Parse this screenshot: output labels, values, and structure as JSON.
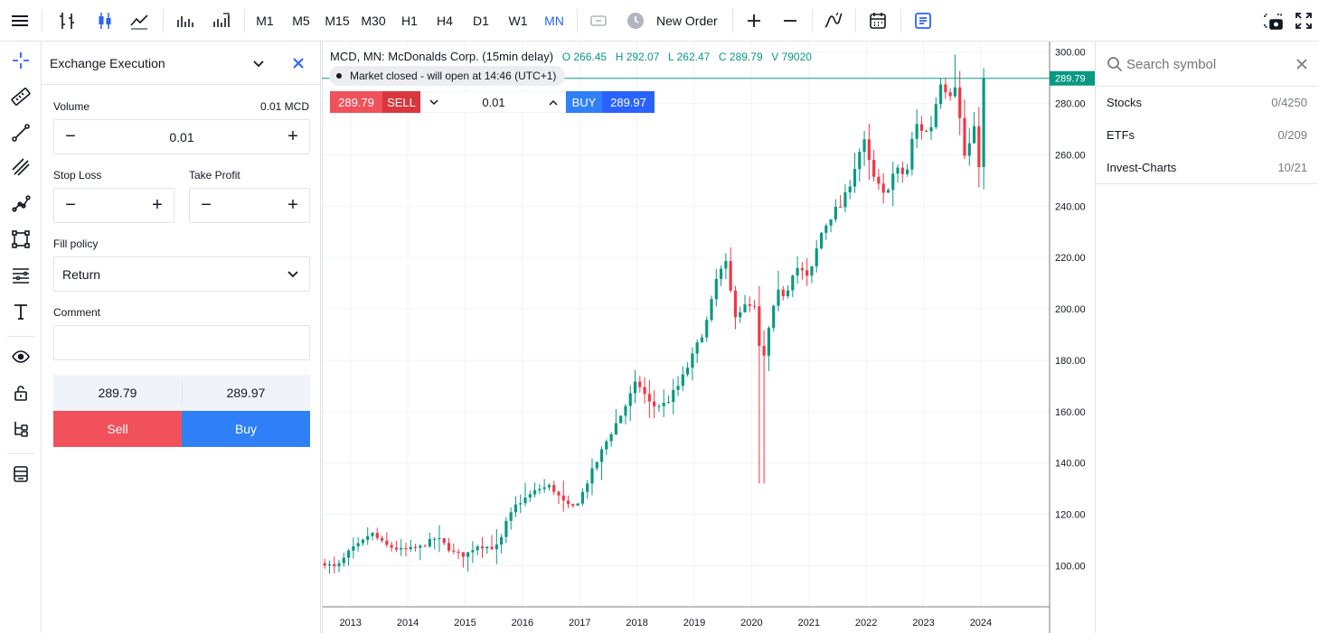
{
  "toolbar": {
    "timeframes": [
      "M1",
      "M5",
      "M15",
      "M30",
      "H1",
      "H4",
      "D1",
      "W1",
      "MN"
    ],
    "active_timeframe": "MN",
    "new_order_label": "New Order"
  },
  "order_panel": {
    "title": "Exchange Execution",
    "volume_label": "Volume",
    "volume_unit_value": "0.01 MCD",
    "volume_value": "0.01",
    "stop_loss_label": "Stop Loss",
    "stop_loss_value": "",
    "take_profit_label": "Take Profit",
    "take_profit_value": "",
    "fill_policy_label": "Fill policy",
    "fill_policy_value": "Return",
    "comment_label": "Comment",
    "comment_value": "",
    "sell_price": "289.79",
    "buy_price": "289.97",
    "sell_label": "Sell",
    "buy_label": "Buy"
  },
  "chart": {
    "symbol_title": "MCD, MN: McDonalds Corp. (15min delay)",
    "ohlc": {
      "o": "O 266.45",
      "h": "H 292.07",
      "l": "L 262.47",
      "c": "C 289.79",
      "v": "V 79020"
    },
    "market_status": "Market closed - will open at 14:46 (UTC+1)",
    "quick_trade": {
      "sell_price": "289.79",
      "sell_label": "SELL",
      "volume": "0.01",
      "buy_label": "BUY",
      "buy_price": "289.97"
    },
    "last_price_label": "289.79",
    "colors": {
      "up": "#089981",
      "down": "#f23645",
      "buy": "#2962ff",
      "sell": "#f23645",
      "price_line": "#089981"
    }
  },
  "chart_data": {
    "type": "candlestick",
    "title": "MCD, MN: McDonalds Corp. (15min delay)",
    "y_ticks": [
      "100.00",
      "120.00",
      "140.00",
      "160.00",
      "180.00",
      "200.00",
      "220.00",
      "240.00",
      "260.00",
      "280.00",
      "300.00"
    ],
    "ylim": [
      84,
      302
    ],
    "x_ticks": [
      {
        "label": "2013",
        "t": 2013.0
      },
      {
        "label": "2014",
        "t": 2014.0
      },
      {
        "label": "2015",
        "t": 2015.0
      },
      {
        "label": "2016",
        "t": 2016.0
      },
      {
        "label": "2017",
        "t": 2017.0
      },
      {
        "label": "2018",
        "t": 2018.0
      },
      {
        "label": "2019",
        "t": 2019.0
      },
      {
        "label": "2020",
        "t": 2020.0
      },
      {
        "label": "2021",
        "t": 2021.0
      },
      {
        "label": "2022",
        "t": 2022.0
      },
      {
        "label": "2023",
        "t": 2023.0
      },
      {
        "label": "2024",
        "t": 2024.0
      }
    ],
    "xlim": [
      2012.5,
      2025.2
    ],
    "last_price": 289.79,
    "anchors": [
      [
        2012.55,
        101
      ],
      [
        2012.75,
        99
      ],
      [
        2013.0,
        106
      ],
      [
        2013.2,
        109
      ],
      [
        2013.35,
        113
      ],
      [
        2013.6,
        108
      ],
      [
        2013.9,
        106
      ],
      [
        2014.2,
        107
      ],
      [
        2014.5,
        111
      ],
      [
        2014.8,
        105
      ],
      [
        2015.0,
        104
      ],
      [
        2015.2,
        108
      ],
      [
        2015.5,
        107
      ],
      [
        2015.6,
        108
      ],
      [
        2015.7,
        116
      ],
      [
        2015.9,
        124
      ],
      [
        2016.1,
        127
      ],
      [
        2016.3,
        130
      ],
      [
        2016.5,
        131
      ],
      [
        2016.7,
        125
      ],
      [
        2016.85,
        122
      ],
      [
        2017.0,
        126
      ],
      [
        2017.2,
        136
      ],
      [
        2017.5,
        150
      ],
      [
        2017.75,
        160
      ],
      [
        2018.0,
        172
      ],
      [
        2018.25,
        162
      ],
      [
        2018.5,
        163
      ],
      [
        2018.75,
        171
      ],
      [
        2019.0,
        183
      ],
      [
        2019.25,
        197
      ],
      [
        2019.4,
        213
      ],
      [
        2019.55,
        217
      ],
      [
        2019.7,
        198
      ],
      [
        2019.9,
        201
      ],
      [
        2020.05,
        200
      ],
      [
        2020.18,
        176
      ],
      [
        2020.28,
        190
      ],
      [
        2020.45,
        206
      ],
      [
        2020.6,
        206
      ],
      [
        2020.75,
        217
      ],
      [
        2020.9,
        214
      ],
      [
        2021.0,
        211
      ],
      [
        2021.2,
        229
      ],
      [
        2021.4,
        237
      ],
      [
        2021.6,
        241
      ],
      [
        2021.75,
        252
      ],
      [
        2021.95,
        266
      ],
      [
        2022.1,
        252
      ],
      [
        2022.3,
        244
      ],
      [
        2022.5,
        254
      ],
      [
        2022.7,
        252
      ],
      [
        2022.85,
        272
      ],
      [
        2023.1,
        268
      ],
      [
        2023.3,
        289
      ],
      [
        2023.45,
        284
      ],
      [
        2023.55,
        288
      ],
      [
        2023.75,
        254
      ],
      [
        2023.85,
        274
      ],
      [
        2024.0,
        252
      ],
      [
        2024.1,
        282
      ],
      [
        2024.12,
        290
      ]
    ]
  },
  "symbol_panel": {
    "search_placeholder": "Search symbol",
    "groups": [
      {
        "name": "Stocks",
        "count": "0/4250"
      },
      {
        "name": "ETFs",
        "count": "0/209"
      },
      {
        "name": "Invest-Charts",
        "count": "10/21"
      }
    ]
  }
}
